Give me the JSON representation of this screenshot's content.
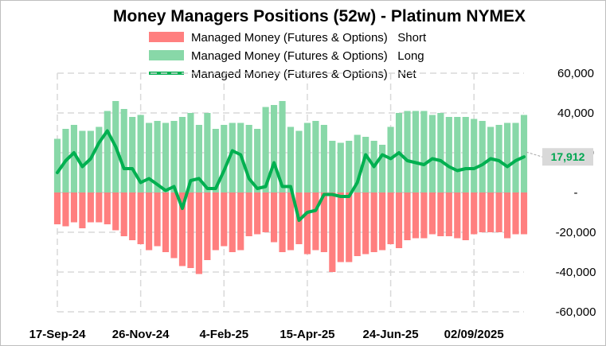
{
  "chart_data": {
    "type": "bar",
    "title": "Money Managers Positions  (52w) - Platinum  NYMEX",
    "xlabel": "",
    "ylabel": "",
    "ylim": [
      -60000,
      60000
    ],
    "yticks": [
      60000,
      40000,
      20000,
      0,
      -20000,
      -40000,
      -60000
    ],
    "ytick_labels": [
      "60,000",
      "40,000",
      "20,000",
      "-",
      "-20,000",
      "-40,000",
      "-60,000"
    ],
    "xtick_labels": [
      "17-Sep-24",
      "26-Nov-24",
      "4-Feb-25",
      "15-Apr-25",
      "24-Jun-25",
      "02/09/2025"
    ],
    "xtick_index": [
      0,
      10,
      20,
      30,
      40,
      50
    ],
    "grid": true,
    "legend_position": "top-center",
    "series": [
      {
        "name": "Managed Money (Futures & Options)   Short",
        "kind": "bar",
        "color": "#ff7f7f",
        "values": [
          -16000,
          -17000,
          -15000,
          -18000,
          -15000,
          -15000,
          -16000,
          -19000,
          -22000,
          -24000,
          -26000,
          -29000,
          -27000,
          -30000,
          -33000,
          -37000,
          -38000,
          -41000,
          -34000,
          -29000,
          -27000,
          -30000,
          -29000,
          -22000,
          -21000,
          -20000,
          -25000,
          -30000,
          -29000,
          -26000,
          -31000,
          -29000,
          -30000,
          -40000,
          -35000,
          -35000,
          -32000,
          -31000,
          -30000,
          -29000,
          -26000,
          -28000,
          -24000,
          -23000,
          -23000,
          -21000,
          -22000,
          -22000,
          -23000,
          -24000,
          -21000,
          -20000,
          -20000,
          -20000,
          -23000,
          -21000,
          -21000
        ]
      },
      {
        "name": "Managed Money (Futures & Options)   Long",
        "kind": "bar",
        "color": "#88d8a8",
        "values": [
          27000,
          32000,
          34000,
          31000,
          31000,
          33000,
          41000,
          46000,
          42000,
          38000,
          39000,
          35000,
          36000,
          35000,
          36000,
          38000,
          40000,
          34000,
          40000,
          32000,
          34000,
          35000,
          35000,
          34000,
          32000,
          43000,
          44000,
          46000,
          33000,
          31000,
          35000,
          36000,
          34000,
          26000,
          25000,
          26000,
          29000,
          28000,
          26000,
          24000,
          33000,
          40000,
          41000,
          41000,
          41000,
          39000,
          40000,
          38000,
          38000,
          38000,
          37000,
          36000,
          33000,
          34000,
          35000,
          35000,
          39000
        ]
      },
      {
        "name": "Managed Money (Futures & Options)   Net",
        "kind": "line",
        "color": "#00b050",
        "values": [
          10000,
          16000,
          20000,
          13000,
          17000,
          25000,
          31000,
          23000,
          12000,
          12000,
          5000,
          7000,
          4000,
          1000,
          3000,
          -8000,
          6000,
          7000,
          2000,
          2000,
          11000,
          21000,
          19000,
          7000,
          2000,
          3000,
          15000,
          3000,
          3000,
          -14000,
          -10000,
          -9000,
          -1000,
          -1000,
          -2000,
          -2000,
          5000,
          19000,
          13000,
          19000,
          17000,
          20000,
          16000,
          15000,
          14000,
          17000,
          16000,
          13000,
          11000,
          12000,
          12000,
          14000,
          17000,
          16000,
          13000,
          16000,
          17912
        ]
      }
    ],
    "last_value_label": "17,912",
    "last_value": 17912
  }
}
